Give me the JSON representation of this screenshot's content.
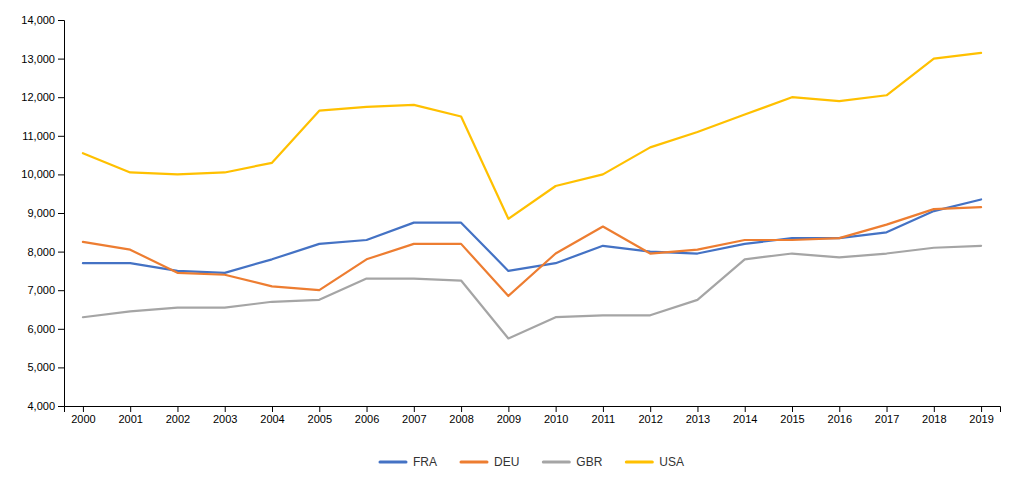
{
  "chart_data": {
    "type": "line",
    "x": [
      2000,
      2001,
      2002,
      2003,
      2004,
      2005,
      2006,
      2007,
      2008,
      2009,
      2010,
      2011,
      2012,
      2013,
      2014,
      2015,
      2016,
      2017,
      2018,
      2019
    ],
    "series": [
      {
        "name": "FRA",
        "color": "#4472C4",
        "values": [
          7700,
          7700,
          7500,
          7450,
          7800,
          8200,
          8300,
          8750,
          8750,
          7500,
          7700,
          8150,
          8000,
          7950,
          8200,
          8350,
          8350,
          8500,
          9050,
          9350
        ]
      },
      {
        "name": "DEU",
        "color": "#ED7D31",
        "values": [
          8250,
          8050,
          7450,
          7400,
          7100,
          7000,
          7800,
          8200,
          8200,
          6850,
          7950,
          8650,
          7950,
          8050,
          8300,
          8300,
          8350,
          8700,
          9100,
          9150
        ]
      },
      {
        "name": "GBR",
        "color": "#A5A5A5",
        "values": [
          6300,
          6450,
          6550,
          6550,
          6700,
          6750,
          7300,
          7300,
          7250,
          5750,
          6300,
          6350,
          6350,
          6750,
          7800,
          7950,
          7850,
          7950,
          8100,
          8150
        ]
      },
      {
        "name": "USA",
        "color": "#FFC000",
        "values": [
          10550,
          10050,
          10000,
          10050,
          10300,
          11650,
          11750,
          11800,
          11500,
          8850,
          9700,
          10000,
          10700,
          11100,
          11550,
          12000,
          11900,
          12050,
          13000,
          13150
        ]
      }
    ],
    "xlim": [
      1999.6,
      2019.4
    ],
    "xticks": [
      2000,
      2001,
      2002,
      2003,
      2004,
      2005,
      2006,
      2007,
      2008,
      2009,
      2010,
      2011,
      2012,
      2013,
      2014,
      2015,
      2016,
      2017,
      2018,
      2019
    ],
    "ylim": [
      4000,
      14000
    ],
    "yticks": [
      {
        "value": 4000,
        "label": "4,000"
      },
      {
        "value": 5000,
        "label": "5,000"
      },
      {
        "value": 6000,
        "label": "6,000"
      },
      {
        "value": 7000,
        "label": "7,000"
      },
      {
        "value": 8000,
        "label": "8,000"
      },
      {
        "value": 9000,
        "label": "9,000"
      },
      {
        "value": 10000,
        "label": "10,000"
      },
      {
        "value": 11000,
        "label": "11,000"
      },
      {
        "value": 12000,
        "label": "12,000"
      },
      {
        "value": 13000,
        "label": "13,000"
      },
      {
        "value": 14000,
        "label": "14,000"
      }
    ],
    "grid": false,
    "legend": "bottom"
  }
}
